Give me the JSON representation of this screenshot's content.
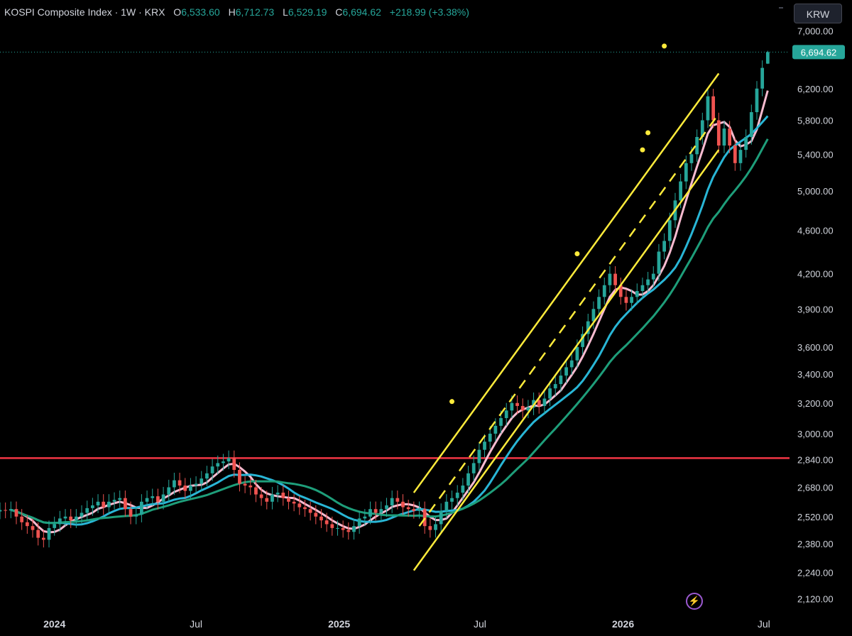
{
  "header": {
    "title": "KOSPI Composite Index · 1W · KRX",
    "open_label": "O",
    "open": "6,533.60",
    "high_label": "H",
    "high": "6,712.73",
    "low_label": "L",
    "low": "6,529.19",
    "close_label": "C",
    "close": "6,694.62",
    "change": "+218.99 (+3.38%)"
  },
  "currency": "KRW",
  "last_price_label": "6,694.62",
  "colors": {
    "up": "#26a69a",
    "down": "#ef5350",
    "resistance": "#f23645",
    "channel": "#ffeb3b",
    "ma_fast": "#f8bbd0",
    "ma_mid": "#29b6d6",
    "ma_slow": "#1e9e7a",
    "bolt": "#9b59d0"
  },
  "chart_data": {
    "type": "candlestick",
    "y_scale": "log",
    "ylim": [
      2050,
      7250
    ],
    "y_ticks": [
      7000,
      6200,
      5800,
      5400,
      5000,
      4600,
      4200,
      3900,
      3600,
      3400,
      3200,
      3000,
      2840,
      2680,
      2520,
      2380,
      2240,
      2120
    ],
    "y_tick_labels": [
      "7,000.00",
      "6,200.00",
      "5,800.00",
      "5,400.00",
      "5,000.00",
      "4,600.00",
      "4,200.00",
      "3,900.00",
      "3,600.00",
      "3,400.00",
      "3,200.00",
      "3,000.00",
      "2,840.00",
      "2,680.00",
      "2,520.00",
      "2,380.00",
      "2,240.00",
      "2,120.00"
    ],
    "x_range": [
      "2023-10-23",
      "2026-08-03"
    ],
    "x_ticks": [
      {
        "date": "2024-01-01",
        "label": "2024"
      },
      {
        "date": "2024-07-01",
        "label": "Jul"
      },
      {
        "date": "2025-01-01",
        "label": "2025"
      },
      {
        "date": "2025-07-01",
        "label": "Jul"
      },
      {
        "date": "2026-01-01",
        "label": "2026"
      },
      {
        "date": "2026-07-01",
        "label": "Jul"
      }
    ],
    "first_week": "2023-10-23",
    "weekly_close": [
      2555,
      2552,
      2560,
      2520,
      2490,
      2470,
      2450,
      2410,
      2400,
      2460,
      2480,
      2510,
      2520,
      2500,
      2520,
      2540,
      2565,
      2580,
      2600,
      2570,
      2600,
      2610,
      2620,
      2560,
      2520,
      2530,
      2600,
      2620,
      2630,
      2600,
      2640,
      2680,
      2720,
      2690,
      2660,
      2690,
      2700,
      2730,
      2760,
      2800,
      2820,
      2830,
      2850,
      2780,
      2700,
      2690,
      2680,
      2640,
      2620,
      2600,
      2640,
      2650,
      2620,
      2600,
      2590,
      2570,
      2560,
      2540,
      2520,
      2500,
      2480,
      2460,
      2460,
      2450,
      2440,
      2470,
      2510,
      2520,
      2560,
      2540,
      2560,
      2580,
      2620,
      2600,
      2570,
      2560,
      2550,
      2560,
      2470,
      2450,
      2480,
      2550,
      2600,
      2620,
      2650,
      2690,
      2760,
      2820,
      2900,
      2950,
      3000,
      3050,
      3100,
      3150,
      3200,
      3180,
      3150,
      3170,
      3220,
      3180,
      3230,
      3300,
      3330,
      3390,
      3450,
      3500,
      3600,
      3700,
      3800,
      3900,
      4000,
      4100,
      4200,
      4100,
      4000,
      3950,
      4000,
      4050,
      4100,
      4150,
      4200,
      4400,
      4500,
      4700,
      4900,
      5100,
      5300,
      5400,
      5600,
      5800,
      6100,
      5800,
      5500,
      5700,
      5500,
      5300,
      5450,
      5600,
      5900,
      6200,
      6476,
      6695
    ],
    "weekly_range_pct": [
      0.016,
      0.016
    ],
    "ohlc_last": {
      "open": 6533.6,
      "high": 6712.73,
      "low": 6529.19,
      "close": 6694.62
    },
    "resistance_line": 2850,
    "channel_lines": [
      {
        "name": "upper",
        "start": [
          "2025-04-07",
          2650
        ],
        "end": [
          "2026-05-04",
          6400
        ],
        "style": "solid"
      },
      {
        "name": "middle",
        "start": [
          "2025-04-14",
          2470
        ],
        "end": [
          "2026-05-04",
          5880
        ],
        "style": "dashed"
      },
      {
        "name": "lower",
        "start": [
          "2025-04-07",
          2250
        ],
        "end": [
          "2026-05-04",
          5450
        ],
        "style": "solid"
      }
    ],
    "peak_markers": [
      [
        "2025-05-26",
        3210
      ],
      [
        "2025-11-03",
        4380
      ],
      [
        "2026-01-26",
        5450
      ],
      [
        "2026-02-02",
        5650
      ],
      [
        "2026-02-23",
        6780
      ]
    ],
    "moving_averages": [
      {
        "period": 5,
        "color": "ma_fast"
      },
      {
        "period": 12,
        "color": "ma_mid"
      },
      {
        "period": 20,
        "color": "ma_slow"
      }
    ]
  }
}
